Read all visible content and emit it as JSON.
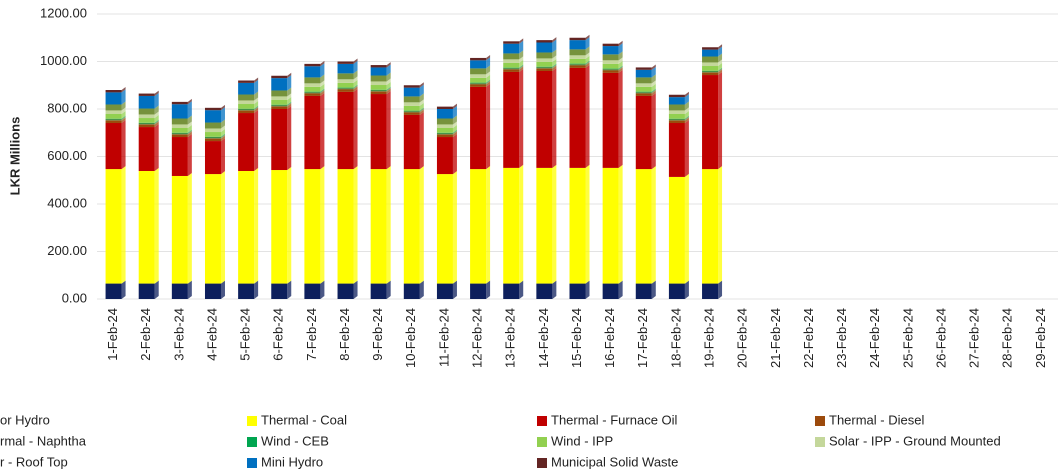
{
  "chart_data": {
    "type": "stacked-bar",
    "y_label": "LKR Millions",
    "categories": [
      "1-Feb-24",
      "2-Feb-24",
      "3-Feb-24",
      "4-Feb-24",
      "5-Feb-24",
      "6-Feb-24",
      "7-Feb-24",
      "8-Feb-24",
      "9-Feb-24",
      "10-Feb-24",
      "11-Feb-24",
      "12-Feb-24",
      "13-Feb-24",
      "14-Feb-24",
      "15-Feb-24",
      "16-Feb-24",
      "17-Feb-24",
      "18-Feb-24",
      "19-Feb-24",
      "20-Feb-24",
      "21-Feb-24",
      "22-Feb-24",
      "23-Feb-24",
      "24-Feb-24",
      "25-Feb-24",
      "26-Feb-24",
      "27-Feb-24",
      "28-Feb-24",
      "29-Feb-24"
    ],
    "ylim": [
      0,
      1200
    ],
    "yticks": [
      {
        "value": 0,
        "label": "0.00"
      },
      {
        "value": 200,
        "label": "200.00"
      },
      {
        "value": 400,
        "label": "400.00"
      },
      {
        "value": 600,
        "label": "600.00"
      },
      {
        "value": 800,
        "label": "800.00"
      },
      {
        "value": 1000,
        "label": "1000.00"
      },
      {
        "value": 1200,
        "label": "1200.00"
      }
    ],
    "grid": true,
    "series": [
      {
        "name": "or Hydro",
        "color": "#0d1f5c",
        "values": [
          65,
          65,
          65,
          65,
          65,
          65,
          65,
          65,
          65,
          65,
          65,
          65,
          65,
          65,
          65,
          65,
          65,
          65,
          65,
          null,
          null,
          null,
          null,
          null,
          null,
          null,
          null,
          null,
          null
        ]
      },
      {
        "name": "Thermal - Coal",
        "color": "#ffff00",
        "values": [
          482,
          474,
          453,
          461,
          474,
          478,
          482,
          482,
          482,
          482,
          461,
          482,
          487,
          487,
          487,
          487,
          482,
          449,
          482,
          null,
          null,
          null,
          null,
          null,
          null,
          null,
          null,
          null,
          null
        ]
      },
      {
        "name": "Thermal - Furnace Oil",
        "color": "#c00000",
        "values": [
          194,
          185,
          164,
          139,
          244,
          257,
          308,
          325,
          316,
          228,
          156,
          346,
          404,
          408,
          421,
          400,
          308,
          227,
          396,
          null,
          null,
          null,
          null,
          null,
          null,
          null,
          null,
          null,
          null
        ]
      },
      {
        "name": "Thermal - Diesel",
        "color": "#9c4a0c",
        "values": [
          10,
          10,
          10,
          10,
          10,
          10,
          10,
          10,
          10,
          10,
          10,
          10,
          10,
          10,
          10,
          10,
          10,
          10,
          10,
          null,
          null,
          null,
          null,
          null,
          null,
          null,
          null,
          null,
          null
        ]
      },
      {
        "name": "rmal - Naphtha",
        "color": "#7a7a3a",
        "values": [
          5,
          5,
          5,
          5,
          5,
          5,
          5,
          5,
          5,
          5,
          5,
          5,
          5,
          5,
          5,
          5,
          5,
          5,
          5,
          null,
          null,
          null,
          null,
          null,
          null,
          null,
          null,
          null,
          null
        ]
      },
      {
        "name": "Wind - CEB",
        "color": "#00a550",
        "values": [
          3,
          3,
          3,
          3,
          3,
          3,
          3,
          3,
          3,
          3,
          3,
          3,
          3,
          3,
          3,
          3,
          3,
          3,
          3,
          null,
          null,
          null,
          null,
          null,
          null,
          null,
          null,
          null,
          null
        ]
      },
      {
        "name": "Wind - IPP",
        "color": "#92d050",
        "values": [
          20,
          20,
          20,
          20,
          20,
          20,
          20,
          20,
          20,
          20,
          20,
          20,
          20,
          20,
          20,
          20,
          20,
          20,
          20,
          null,
          null,
          null,
          null,
          null,
          null,
          null,
          null,
          null,
          null
        ]
      },
      {
        "name": "Solar - IPP - Ground Mounted",
        "color": "#c4d79b",
        "values": [
          15,
          15,
          15,
          15,
          15,
          15,
          15,
          15,
          15,
          15,
          15,
          15,
          15,
          15,
          15,
          15,
          15,
          15,
          15,
          null,
          null,
          null,
          null,
          null,
          null,
          null,
          null,
          null,
          null
        ]
      },
      {
        "name": "r - Roof Top",
        "color": "#76923c",
        "values": [
          25,
          25,
          25,
          25,
          25,
          25,
          25,
          25,
          25,
          25,
          25,
          25,
          25,
          25,
          25,
          25,
          25,
          25,
          25,
          null,
          null,
          null,
          null,
          null,
          null,
          null,
          null,
          null,
          null
        ]
      },
      {
        "name": "Mini Hydro",
        "color": "#0070c0",
        "values": [
          51,
          53,
          60,
          52,
          49,
          52,
          47,
          40,
          34,
          37,
          40,
          34,
          41,
          42,
          39,
          35,
          32,
          31,
          29,
          null,
          null,
          null,
          null,
          null,
          null,
          null,
          null,
          null,
          null
        ]
      },
      {
        "name": "Municipal Solid Waste",
        "color": "#632523",
        "values": [
          10,
          10,
          10,
          10,
          10,
          10,
          10,
          10,
          10,
          10,
          10,
          10,
          10,
          10,
          10,
          10,
          10,
          10,
          10,
          null,
          null,
          null,
          null,
          null,
          null,
          null,
          null,
          null,
          null
        ]
      }
    ]
  }
}
